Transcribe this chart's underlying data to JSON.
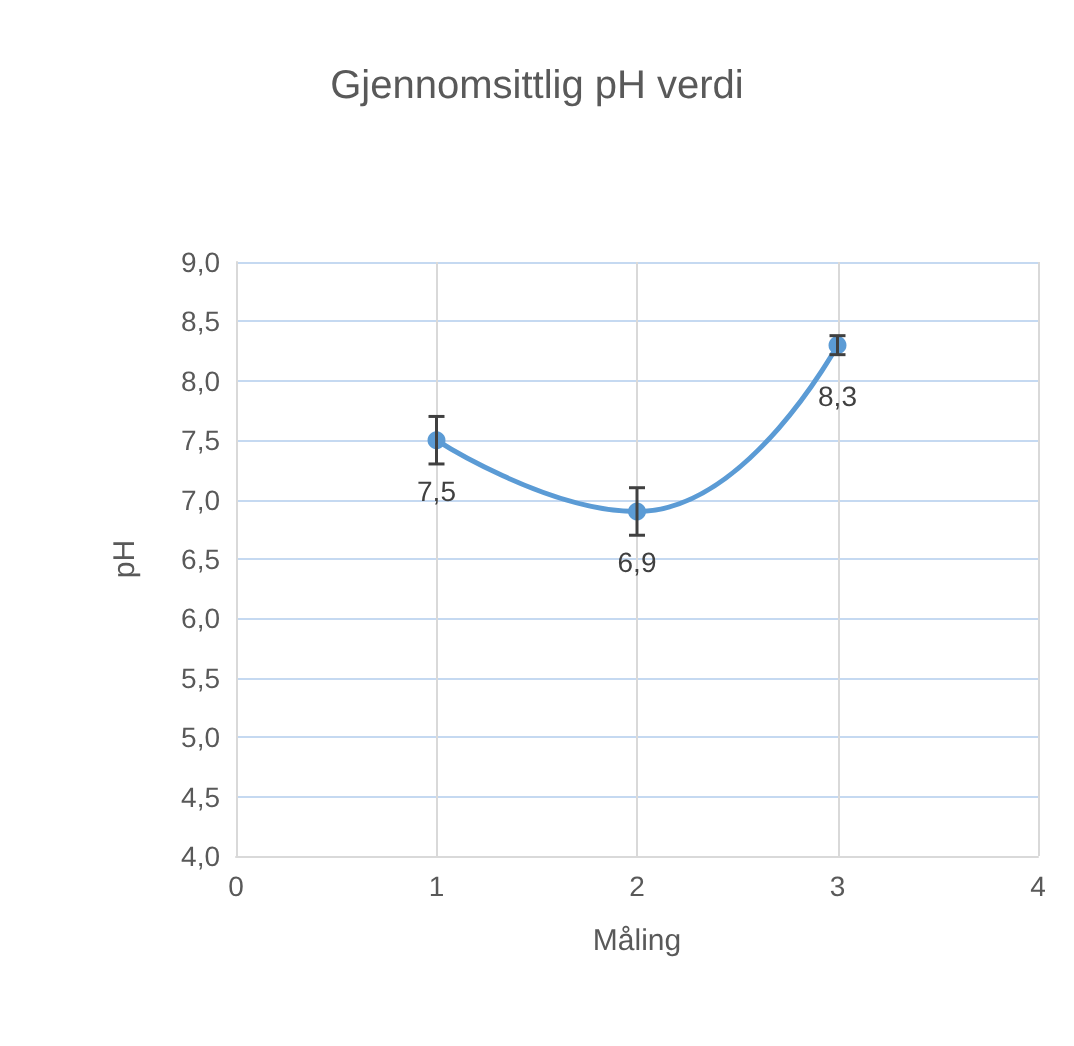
{
  "chart_data": {
    "type": "line",
    "title": "Gjennomsittlig pH verdi",
    "xlabel": "Måling",
    "ylabel": "pH",
    "x": [
      1,
      2,
      3
    ],
    "series": [
      {
        "color": "#5b9bd5",
        "values": [
          7.5,
          6.9,
          8.3
        ],
        "errors": [
          0.2,
          0.2,
          0.08
        ],
        "value_labels": [
          "7,5",
          "6,9",
          "8,3"
        ]
      }
    ],
    "xlim": [
      0,
      4
    ],
    "xticks": [
      0,
      1,
      2,
      3,
      4
    ],
    "ylim": [
      4,
      9
    ],
    "yticks": [
      {
        "value": 4,
        "label": "4,0"
      },
      {
        "value": 4.5,
        "label": "4,5"
      },
      {
        "value": 5,
        "label": "5,0"
      },
      {
        "value": 5.5,
        "label": "5,5"
      },
      {
        "value": 6,
        "label": "6,0"
      },
      {
        "value": 6.5,
        "label": "6,5"
      },
      {
        "value": 7,
        "label": "7,0"
      },
      {
        "value": 7.5,
        "label": "7,5"
      },
      {
        "value": 8,
        "label": "8,0"
      },
      {
        "value": 8.5,
        "label": "8,5"
      },
      {
        "value": 9,
        "label": "9,0"
      }
    ],
    "grid": true,
    "marker": "circle",
    "line_style": "solid"
  }
}
